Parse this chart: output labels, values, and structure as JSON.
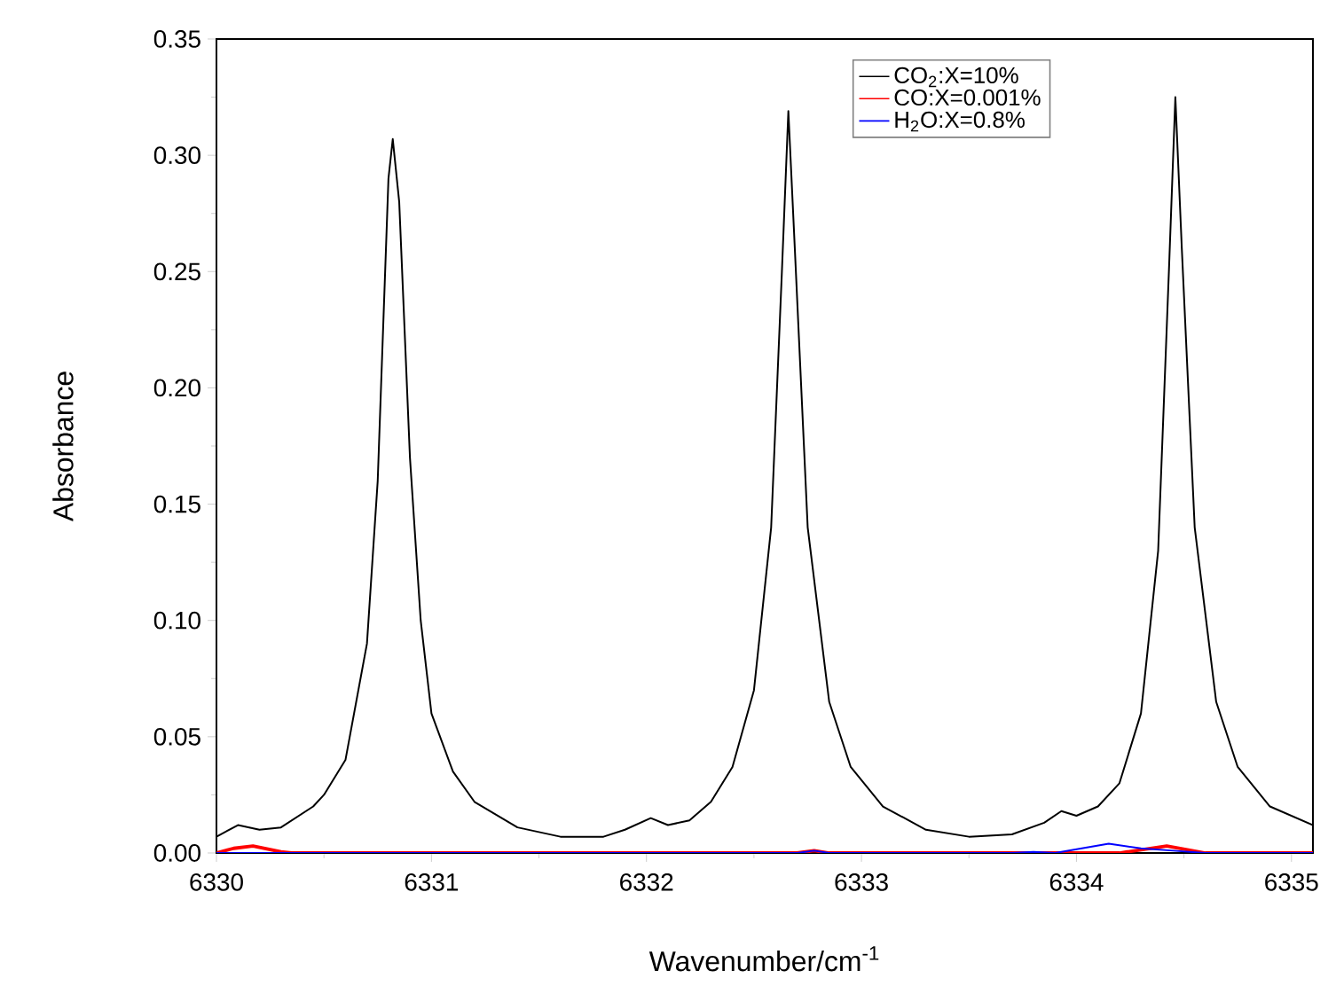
{
  "chart_data": {
    "type": "line",
    "xlabel": "Wavenumber/cm$^{-1}$",
    "ylabel": "Absorbance",
    "xlim": [
      6330,
      6335.1
    ],
    "xticks": [
      6330,
      6331,
      6332,
      6333,
      6334,
      6335
    ],
    "ylim": [
      0,
      0.35
    ],
    "yticks": [
      {
        "value": 0,
        "label": "0.00"
      },
      {
        "value": 0.05,
        "label": "0.05"
      },
      {
        "value": 0.1,
        "label": "0.10"
      },
      {
        "value": 0.15,
        "label": "0.15"
      },
      {
        "value": 0.2,
        "label": "0.20"
      },
      {
        "value": 0.25,
        "label": "0.25"
      },
      {
        "value": 0.3,
        "label": "0.30"
      },
      {
        "value": 0.35,
        "label": "0.35"
      }
    ],
    "legend": "top right",
    "grid": false,
    "marker": "none",
    "line_style": "solid",
    "series": [
      {
        "name": "CO$_{2}$:X=10%",
        "color": "#000000",
        "x": [
          6330,
          6330.1,
          6330.2,
          6330.3,
          6330.45,
          6330.5,
          6330.6,
          6330.7,
          6330.75,
          6330.8,
          6330.82,
          6330.85,
          6330.9,
          6330.95,
          6331,
          6331.1,
          6331.2,
          6331.4,
          6331.6,
          6331.8,
          6331.9,
          6332.02,
          6332.1,
          6332.2,
          6332.3,
          6332.4,
          6332.5,
          6332.58,
          6332.63,
          6332.66,
          6332.69,
          6332.75,
          6332.85,
          6332.95,
          6333.1,
          6333.3,
          6333.5,
          6333.7,
          6333.85,
          6333.93,
          6334,
          6334.1,
          6334.2,
          6334.3,
          6334.38,
          6334.43,
          6334.46,
          6334.49,
          6334.55,
          6334.65,
          6334.75,
          6334.9,
          6335.1
        ],
        "values": [
          0.007,
          0.012,
          0.01,
          0.011,
          0.02,
          0.025,
          0.04,
          0.09,
          0.16,
          0.29,
          0.307,
          0.28,
          0.17,
          0.1,
          0.06,
          0.035,
          0.022,
          0.011,
          0.007,
          0.007,
          0.01,
          0.015,
          0.012,
          0.014,
          0.022,
          0.037,
          0.07,
          0.14,
          0.25,
          0.319,
          0.26,
          0.14,
          0.065,
          0.037,
          0.02,
          0.01,
          0.007,
          0.008,
          0.013,
          0.018,
          0.016,
          0.02,
          0.03,
          0.06,
          0.13,
          0.25,
          0.325,
          0.26,
          0.14,
          0.065,
          0.037,
          0.02,
          0.012
        ]
      },
      {
        "name": "CO:X=0.001%",
        "color": "#ff0000",
        "x": [
          6330,
          6330.08,
          6330.17,
          6330.3,
          6330.35,
          6332.7,
          6332.78,
          6332.85,
          6334.2,
          6334.42,
          6334.6,
          6335.1
        ],
        "values": [
          0,
          0.002,
          0.003,
          0.0005,
          0,
          0,
          0.001,
          0,
          0,
          0.003,
          0,
          0
        ]
      },
      {
        "name": "H$_{2}$O:X=0.8%",
        "color": "#0000ff",
        "x": [
          6330,
          6332.7,
          6332.78,
          6332.85,
          6333.7,
          6333.8,
          6333.9,
          6334.15,
          6334.3,
          6334.45,
          6334.6,
          6335.1
        ],
        "values": [
          0,
          0,
          0.001,
          0,
          0,
          0.0005,
          0,
          0.004,
          0.002,
          0.001,
          0,
          0
        ]
      }
    ]
  }
}
